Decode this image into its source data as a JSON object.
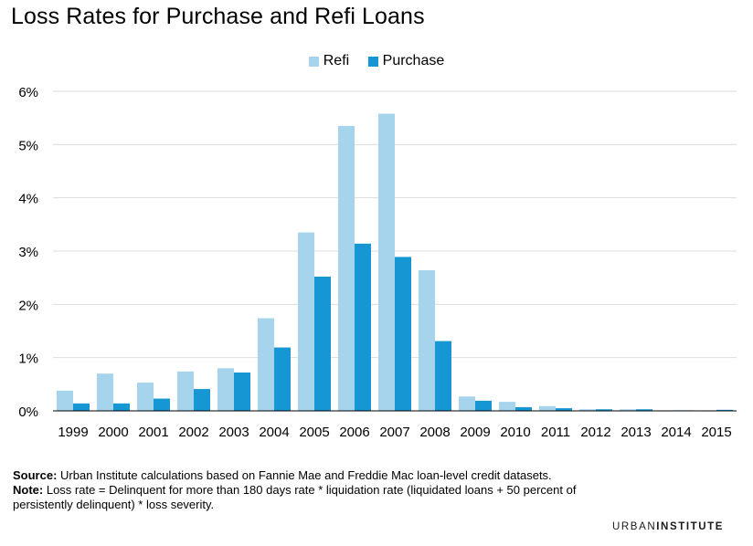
{
  "title": "Loss Rates for Purchase and Refi Loans",
  "colors": {
    "refi": "#a6d4ec",
    "purchase": "#1696d2",
    "grid": "#dedede"
  },
  "chart_data": {
    "type": "bar",
    "title": "Loss Rates for Purchase and Refi Loans",
    "categories": [
      "1999",
      "2000",
      "2001",
      "2002",
      "2003",
      "2004",
      "2005",
      "2006",
      "2007",
      "2008",
      "2009",
      "2010",
      "2011",
      "2012",
      "2013",
      "2014",
      "2015"
    ],
    "series": [
      {
        "name": "Refi",
        "values": [
          0.38,
          0.7,
          0.53,
          0.74,
          0.8,
          1.74,
          3.35,
          5.35,
          5.58,
          2.64,
          0.27,
          0.17,
          0.09,
          0.03,
          0.03,
          0.01,
          0.01
        ]
      },
      {
        "name": "Purchase",
        "values": [
          0.14,
          0.14,
          0.23,
          0.41,
          0.72,
          1.19,
          2.52,
          3.14,
          2.89,
          1.31,
          0.19,
          0.07,
          0.05,
          0.03,
          0.03,
          0.01,
          0.02
        ]
      }
    ],
    "ylim": [
      0,
      6
    ],
    "yticks": [
      "0%",
      "1%",
      "2%",
      "3%",
      "4%",
      "5%",
      "6%"
    ],
    "xlabel": "",
    "ylabel": "",
    "legend": "top-center",
    "grid": true
  },
  "legend": {
    "refi": "Refi",
    "purchase": "Purchase"
  },
  "footer": {
    "source_label": "Source:",
    "source_text": "Urban Institute calculations based on Fannie Mae and Freddie Mac loan-level credit datasets.",
    "note_label": "Note:",
    "note_text": "Loss rate = Delinquent for more than 180 days rate * liquidation rate (liquidated loans + 50 percent of persistently delinquent) * loss severity."
  },
  "brand": {
    "urban": "URBAN",
    "institute": "INSTITUTE"
  }
}
